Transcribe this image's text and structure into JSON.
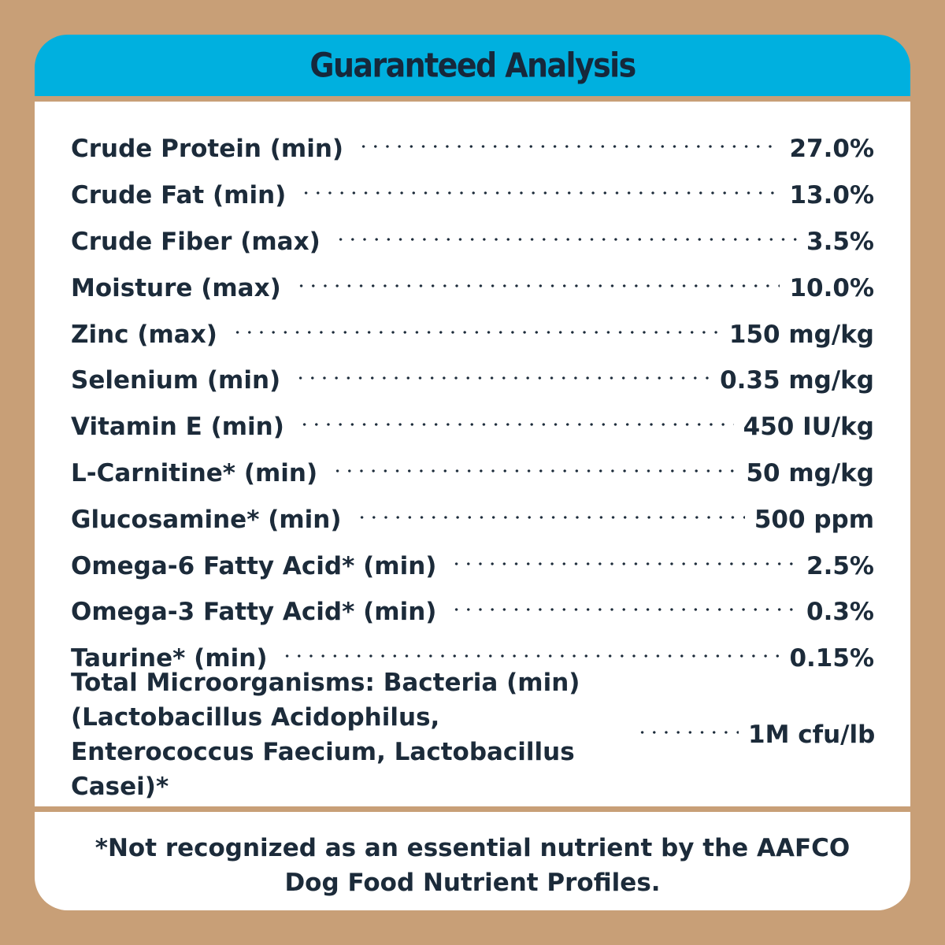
{
  "header": {
    "title": "Guaranteed Analysis"
  },
  "rows": [
    {
      "label": "Crude Protein (min)",
      "value": "27.0%"
    },
    {
      "label": "Crude Fat (min)",
      "value": "13.0%"
    },
    {
      "label": "Crude Fiber (max)",
      "value": "3.5%"
    },
    {
      "label": "Moisture (max)",
      "value": "10.0%"
    },
    {
      "label": "Zinc (max)",
      "value": "150 mg/kg"
    },
    {
      "label": "Selenium (min)",
      "value": "0.35 mg/kg"
    },
    {
      "label": "Vitamin E (min)",
      "value": "450 IU/kg"
    },
    {
      "label": "L-Carnitine* (min)",
      "value": "50 mg/kg"
    },
    {
      "label": "Glucosamine* (min)",
      "value": "500 ppm"
    },
    {
      "label": "Omega-6 Fatty Acid* (min)",
      "value": "2.5%"
    },
    {
      "label": "Omega-3 Fatty Acid* (min)",
      "value": "0.3%"
    },
    {
      "label": "Taurine* (min)",
      "value": "0.15%"
    },
    {
      "label": "Total Microorganisms: Bacteria (min) (Lactobacillus Acidophilus, Enterococcus Faecium, Lactobacillus Casei)*",
      "value": "1M cfu/lb"
    }
  ],
  "footer": {
    "note": "*Not recognized as an essential nutrient by the AAFCO Dog Food Nutrient Profiles."
  },
  "colors": {
    "background": "#c89f77",
    "header": "#00b0df",
    "text": "#1c2b3a",
    "panel": "#ffffff"
  }
}
